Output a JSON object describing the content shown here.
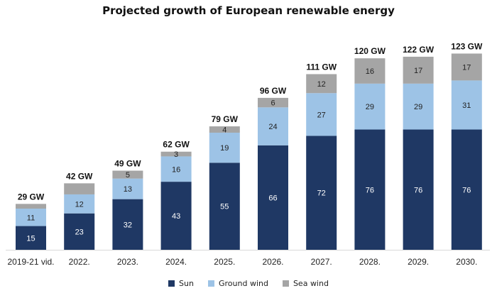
{
  "chart_data": {
    "type": "bar",
    "stacked": true,
    "title": "Projected growth of European renewable energy",
    "xlabel": "",
    "ylabel": "",
    "unit": "GW",
    "ylim": [
      0,
      130
    ],
    "grid": false,
    "legend_position": "bottom",
    "categories": [
      "2019-21 vid.",
      "2022.",
      "2023.",
      "2024.",
      "2025.",
      "2026.",
      "2027.",
      "2028.",
      "2029.",
      "2030."
    ],
    "series": [
      {
        "name": "Sun",
        "color": "#1f3864",
        "label_color": "#ffffff",
        "values": [
          15,
          23,
          32,
          43,
          55,
          66,
          72,
          76,
          76,
          76
        ],
        "labels": [
          "15",
          "23",
          "32",
          "43",
          "55",
          "66",
          "72",
          "76",
          "76",
          "76"
        ]
      },
      {
        "name": "Ground wind",
        "color": "#9dc3e6",
        "label_color": "#222222",
        "values": [
          11,
          12,
          13,
          16,
          19,
          24,
          27,
          29,
          29,
          31
        ],
        "labels": [
          "11",
          "12",
          "13",
          "16",
          "19",
          "24",
          "27",
          "29",
          "29",
          "31"
        ]
      },
      {
        "name": "Sea wind",
        "color": "#a5a5a5",
        "label_color": "#222222",
        "values": [
          3,
          7,
          5,
          3,
          4,
          6,
          12,
          16,
          17,
          17
        ],
        "labels": [
          "",
          "",
          "5",
          "3",
          "4",
          "6",
          "12",
          "16",
          "17",
          "17"
        ]
      }
    ],
    "totals": [
      "29 GW",
      "42 GW",
      "49 GW",
      "62 GW",
      "79 GW",
      "96 GW",
      "111 GW",
      "120 GW",
      "122 GW",
      "123 GW"
    ]
  }
}
